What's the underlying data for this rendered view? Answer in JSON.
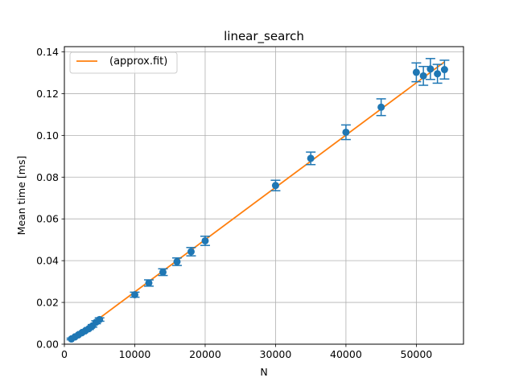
{
  "chart_data": {
    "type": "scatter",
    "title": "linear_search",
    "xlabel": "N",
    "ylabel": "Mean time [ms]",
    "xlim": [
      0,
      56700
    ],
    "ylim": [
      0,
      0.1425
    ],
    "grid": true,
    "legend_position": "top-left",
    "x_ticks": [
      0,
      10000,
      20000,
      30000,
      40000,
      50000
    ],
    "x_tick_labels": [
      "0",
      "10000",
      "20000",
      "30000",
      "40000",
      "50000"
    ],
    "y_ticks": [
      0.0,
      0.02,
      0.04,
      0.06,
      0.08,
      0.1,
      0.12,
      0.14
    ],
    "y_tick_labels": [
      "0.00",
      "0.02",
      "0.04",
      "0.06",
      "0.08",
      "0.10",
      "0.12",
      "0.14"
    ],
    "series": [
      {
        "kind": "errorbar",
        "color": "#1f77b4",
        "points": [
          {
            "x": 1000,
            "y": 0.0025,
            "err": 0.0004
          },
          {
            "x": 1500,
            "y": 0.0035,
            "err": 0.0004
          },
          {
            "x": 2000,
            "y": 0.0045,
            "err": 0.0004
          },
          {
            "x": 2500,
            "y": 0.0055,
            "err": 0.0005
          },
          {
            "x": 3000,
            "y": 0.0065,
            "err": 0.0005
          },
          {
            "x": 3500,
            "y": 0.0075,
            "err": 0.0005
          },
          {
            "x": 4000,
            "y": 0.0088,
            "err": 0.0006
          },
          {
            "x": 4500,
            "y": 0.0105,
            "err": 0.0007
          },
          {
            "x": 5000,
            "y": 0.0118,
            "err": 0.0008
          },
          {
            "x": 10000,
            "y": 0.0237,
            "err": 0.0012
          },
          {
            "x": 12000,
            "y": 0.0293,
            "err": 0.0015
          },
          {
            "x": 14000,
            "y": 0.0345,
            "err": 0.0016
          },
          {
            "x": 16000,
            "y": 0.0395,
            "err": 0.0018
          },
          {
            "x": 18000,
            "y": 0.0443,
            "err": 0.002
          },
          {
            "x": 20000,
            "y": 0.0495,
            "err": 0.0022
          },
          {
            "x": 30000,
            "y": 0.076,
            "err": 0.0025
          },
          {
            "x": 35000,
            "y": 0.089,
            "err": 0.003
          },
          {
            "x": 40000,
            "y": 0.1015,
            "err": 0.0035
          },
          {
            "x": 45000,
            "y": 0.1135,
            "err": 0.004
          },
          {
            "x": 50000,
            "y": 0.1302,
            "err": 0.0045
          },
          {
            "x": 51000,
            "y": 0.1285,
            "err": 0.0045
          },
          {
            "x": 52000,
            "y": 0.1318,
            "err": 0.005
          },
          {
            "x": 53000,
            "y": 0.1295,
            "err": 0.0045
          },
          {
            "x": 54000,
            "y": 0.1315,
            "err": 0.0045
          }
        ]
      },
      {
        "name": "(approx.fit)",
        "kind": "line",
        "color": "#ff7f0e",
        "x": [
          1000,
          54000
        ],
        "y": [
          0.0025,
          0.1352
        ]
      }
    ]
  }
}
